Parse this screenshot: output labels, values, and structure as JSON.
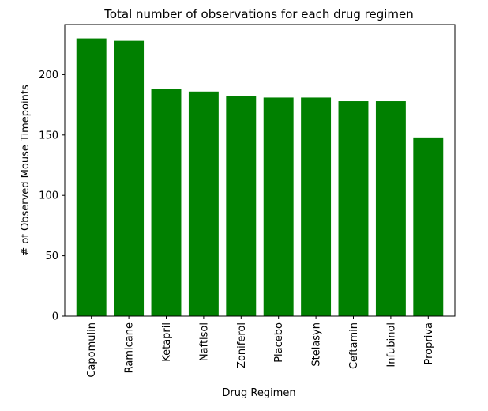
{
  "chart_data": {
    "type": "bar",
    "title": "Total number of observations for each drug regimen",
    "xlabel": "Drug Regimen",
    "ylabel": "# of Observed Mouse Timepoints",
    "categories": [
      "Capomulin",
      "Ramicane",
      "Ketapril",
      "Naftisol",
      "Zoniferol",
      "Placebo",
      "Stelasyn",
      "Ceftamin",
      "Infubinol",
      "Propriva"
    ],
    "values": [
      230,
      228,
      188,
      186,
      182,
      181,
      181,
      178,
      178,
      148
    ],
    "ylim": [
      0,
      241.5
    ],
    "yticks": [
      0,
      50,
      100,
      150,
      200
    ],
    "bar_color": "#008000",
    "grid": false,
    "legend": "none"
  }
}
